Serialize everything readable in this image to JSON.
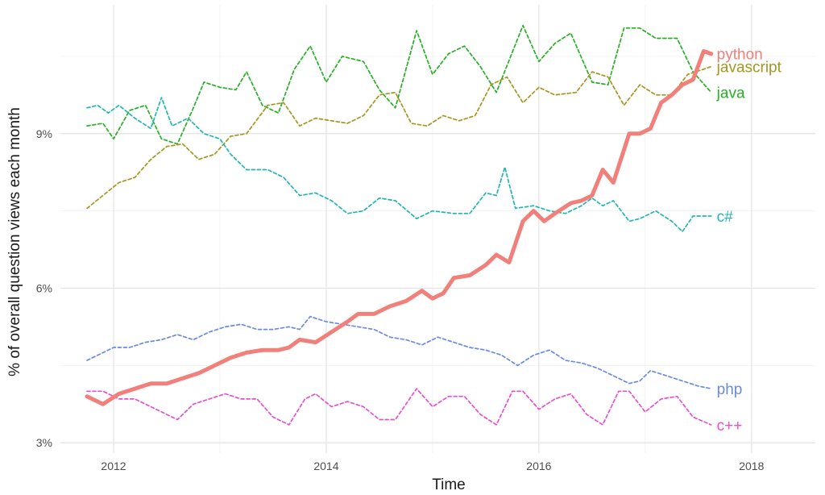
{
  "chart_data": {
    "type": "line",
    "title": "",
    "xlabel": "Time",
    "ylabel": "% of overall question views each month",
    "xlim": [
      2011.5,
      2018.6
    ],
    "ylim": [
      2.8,
      11.5
    ],
    "x_ticks": [
      2012,
      2014,
      2016,
      2018
    ],
    "x_tick_labels": [
      "2012",
      "2014",
      "2016",
      "2018"
    ],
    "y_ticks": [
      3,
      6,
      9
    ],
    "y_tick_labels": [
      "3%",
      "6%",
      "9%"
    ],
    "grid": true,
    "legend": "direct labels at line ends",
    "series": [
      {
        "name": "java",
        "color": "#26b024",
        "style": "dashed",
        "points": [
          [
            2011.75,
            9.15
          ],
          [
            2011.9,
            9.2
          ],
          [
            2012.0,
            8.9
          ],
          [
            2012.15,
            9.45
          ],
          [
            2012.3,
            9.55
          ],
          [
            2012.45,
            8.9
          ],
          [
            2012.6,
            8.8
          ],
          [
            2012.75,
            9.5
          ],
          [
            2012.85,
            10.0
          ],
          [
            2013.0,
            9.9
          ],
          [
            2013.15,
            9.85
          ],
          [
            2013.25,
            10.2
          ],
          [
            2013.4,
            9.55
          ],
          [
            2013.55,
            9.4
          ],
          [
            2013.7,
            10.25
          ],
          [
            2013.85,
            10.7
          ],
          [
            2014.0,
            10.0
          ],
          [
            2014.15,
            10.5
          ],
          [
            2014.35,
            10.4
          ],
          [
            2014.5,
            9.85
          ],
          [
            2014.65,
            9.5
          ],
          [
            2014.85,
            11.0
          ],
          [
            2015.0,
            10.15
          ],
          [
            2015.15,
            10.55
          ],
          [
            2015.3,
            10.7
          ],
          [
            2015.45,
            10.3
          ],
          [
            2015.6,
            9.8
          ],
          [
            2015.85,
            11.1
          ],
          [
            2016.0,
            10.4
          ],
          [
            2016.15,
            10.75
          ],
          [
            2016.3,
            10.95
          ],
          [
            2016.5,
            10.0
          ],
          [
            2016.65,
            9.95
          ],
          [
            2016.8,
            11.05
          ],
          [
            2016.95,
            11.05
          ],
          [
            2017.1,
            10.85
          ],
          [
            2017.3,
            10.85
          ],
          [
            2017.45,
            10.2
          ],
          [
            2017.62,
            9.8
          ]
        ]
      },
      {
        "name": "javascript",
        "color": "#a5961f",
        "style": "dashed",
        "points": [
          [
            2011.75,
            7.55
          ],
          [
            2011.9,
            7.8
          ],
          [
            2012.05,
            8.05
          ],
          [
            2012.2,
            8.15
          ],
          [
            2012.35,
            8.5
          ],
          [
            2012.5,
            8.75
          ],
          [
            2012.65,
            8.8
          ],
          [
            2012.8,
            8.5
          ],
          [
            2012.95,
            8.6
          ],
          [
            2013.1,
            8.95
          ],
          [
            2013.25,
            9.0
          ],
          [
            2013.45,
            9.55
          ],
          [
            2013.6,
            9.6
          ],
          [
            2013.75,
            9.15
          ],
          [
            2013.9,
            9.3
          ],
          [
            2014.05,
            9.25
          ],
          [
            2014.2,
            9.2
          ],
          [
            2014.35,
            9.35
          ],
          [
            2014.5,
            9.75
          ],
          [
            2014.65,
            9.8
          ],
          [
            2014.8,
            9.2
          ],
          [
            2014.95,
            9.15
          ],
          [
            2015.1,
            9.35
          ],
          [
            2015.25,
            9.25
          ],
          [
            2015.4,
            9.35
          ],
          [
            2015.55,
            9.95
          ],
          [
            2015.7,
            10.1
          ],
          [
            2015.85,
            9.6
          ],
          [
            2016.0,
            9.9
          ],
          [
            2016.15,
            9.75
          ],
          [
            2016.35,
            9.8
          ],
          [
            2016.5,
            10.2
          ],
          [
            2016.65,
            10.1
          ],
          [
            2016.8,
            9.55
          ],
          [
            2016.95,
            9.95
          ],
          [
            2017.1,
            9.75
          ],
          [
            2017.25,
            9.75
          ],
          [
            2017.4,
            10.15
          ],
          [
            2017.62,
            10.3
          ]
        ]
      },
      {
        "name": "c#",
        "color": "#23b5b5",
        "style": "dashed",
        "points": [
          [
            2011.75,
            9.5
          ],
          [
            2011.85,
            9.55
          ],
          [
            2011.95,
            9.4
          ],
          [
            2012.05,
            9.55
          ],
          [
            2012.2,
            9.3
          ],
          [
            2012.35,
            9.1
          ],
          [
            2012.45,
            9.7
          ],
          [
            2012.55,
            9.15
          ],
          [
            2012.7,
            9.3
          ],
          [
            2012.85,
            9.0
          ],
          [
            2013.0,
            8.9
          ],
          [
            2013.1,
            8.6
          ],
          [
            2013.25,
            8.3
          ],
          [
            2013.45,
            8.3
          ],
          [
            2013.6,
            8.15
          ],
          [
            2013.75,
            7.8
          ],
          [
            2013.9,
            7.85
          ],
          [
            2014.05,
            7.7
          ],
          [
            2014.2,
            7.45
          ],
          [
            2014.35,
            7.5
          ],
          [
            2014.5,
            7.75
          ],
          [
            2014.65,
            7.7
          ],
          [
            2014.85,
            7.35
          ],
          [
            2015.0,
            7.5
          ],
          [
            2015.2,
            7.45
          ],
          [
            2015.35,
            7.45
          ],
          [
            2015.5,
            7.85
          ],
          [
            2015.6,
            7.8
          ],
          [
            2015.68,
            8.35
          ],
          [
            2015.78,
            7.55
          ],
          [
            2015.95,
            7.6
          ],
          [
            2016.1,
            7.5
          ],
          [
            2016.25,
            7.45
          ],
          [
            2016.4,
            7.6
          ],
          [
            2016.5,
            7.75
          ],
          [
            2016.6,
            7.6
          ],
          [
            2016.7,
            7.7
          ],
          [
            2016.85,
            7.3
          ],
          [
            2016.95,
            7.35
          ],
          [
            2017.1,
            7.5
          ],
          [
            2017.25,
            7.3
          ],
          [
            2017.35,
            7.1
          ],
          [
            2017.45,
            7.4
          ],
          [
            2017.62,
            7.4
          ]
        ]
      },
      {
        "name": "php",
        "color": "#6b8be0",
        "style": "dashed",
        "points": [
          [
            2011.75,
            4.6
          ],
          [
            2011.85,
            4.7
          ],
          [
            2012.0,
            4.85
          ],
          [
            2012.15,
            4.85
          ],
          [
            2012.3,
            4.95
          ],
          [
            2012.45,
            5.0
          ],
          [
            2012.6,
            5.1
          ],
          [
            2012.75,
            5.0
          ],
          [
            2012.9,
            5.15
          ],
          [
            2013.05,
            5.25
          ],
          [
            2013.2,
            5.3
          ],
          [
            2013.35,
            5.2
          ],
          [
            2013.5,
            5.2
          ],
          [
            2013.65,
            5.25
          ],
          [
            2013.75,
            5.2
          ],
          [
            2013.85,
            5.45
          ],
          [
            2014.0,
            5.35
          ],
          [
            2014.15,
            5.3
          ],
          [
            2014.3,
            5.25
          ],
          [
            2014.45,
            5.2
          ],
          [
            2014.6,
            5.05
          ],
          [
            2014.75,
            5.0
          ],
          [
            2014.9,
            4.9
          ],
          [
            2015.05,
            5.05
          ],
          [
            2015.2,
            4.95
          ],
          [
            2015.35,
            4.85
          ],
          [
            2015.5,
            4.8
          ],
          [
            2015.65,
            4.7
          ],
          [
            2015.8,
            4.5
          ],
          [
            2015.95,
            4.7
          ],
          [
            2016.1,
            4.8
          ],
          [
            2016.25,
            4.6
          ],
          [
            2016.4,
            4.55
          ],
          [
            2016.55,
            4.45
          ],
          [
            2016.7,
            4.3
          ],
          [
            2016.85,
            4.15
          ],
          [
            2016.95,
            4.2
          ],
          [
            2017.05,
            4.4
          ],
          [
            2017.2,
            4.3
          ],
          [
            2017.35,
            4.2
          ],
          [
            2017.5,
            4.1
          ],
          [
            2017.62,
            4.05
          ]
        ]
      },
      {
        "name": "c++",
        "color": "#e84fd0",
        "style": "dashed",
        "points": [
          [
            2011.75,
            4.0
          ],
          [
            2011.9,
            4.0
          ],
          [
            2012.05,
            3.85
          ],
          [
            2012.2,
            3.85
          ],
          [
            2012.35,
            3.7
          ],
          [
            2012.5,
            3.55
          ],
          [
            2012.6,
            3.45
          ],
          [
            2012.75,
            3.75
          ],
          [
            2012.9,
            3.85
          ],
          [
            2013.05,
            3.95
          ],
          [
            2013.2,
            3.85
          ],
          [
            2013.35,
            3.85
          ],
          [
            2013.5,
            3.5
          ],
          [
            2013.65,
            3.35
          ],
          [
            2013.8,
            3.85
          ],
          [
            2013.9,
            3.95
          ],
          [
            2014.05,
            3.7
          ],
          [
            2014.2,
            3.8
          ],
          [
            2014.35,
            3.7
          ],
          [
            2014.5,
            3.45
          ],
          [
            2014.65,
            3.45
          ],
          [
            2014.85,
            4.05
          ],
          [
            2015.0,
            3.7
          ],
          [
            2015.15,
            3.9
          ],
          [
            2015.3,
            3.9
          ],
          [
            2015.45,
            3.55
          ],
          [
            2015.6,
            3.35
          ],
          [
            2015.75,
            4.0
          ],
          [
            2015.85,
            4.0
          ],
          [
            2016.0,
            3.65
          ],
          [
            2016.15,
            3.85
          ],
          [
            2016.3,
            3.95
          ],
          [
            2016.45,
            3.55
          ],
          [
            2016.6,
            3.35
          ],
          [
            2016.75,
            4.0
          ],
          [
            2016.85,
            4.0
          ],
          [
            2017.0,
            3.6
          ],
          [
            2017.15,
            3.85
          ],
          [
            2017.3,
            3.9
          ],
          [
            2017.45,
            3.5
          ],
          [
            2017.62,
            3.35
          ]
        ]
      },
      {
        "name": "python",
        "color": "#f1807a",
        "style": "solid",
        "points": [
          [
            2011.75,
            3.9
          ],
          [
            2011.9,
            3.75
          ],
          [
            2012.05,
            3.95
          ],
          [
            2012.2,
            4.05
          ],
          [
            2012.35,
            4.15
          ],
          [
            2012.5,
            4.15
          ],
          [
            2012.65,
            4.25
          ],
          [
            2012.8,
            4.35
          ],
          [
            2012.95,
            4.5
          ],
          [
            2013.1,
            4.65
          ],
          [
            2013.25,
            4.75
          ],
          [
            2013.4,
            4.8
          ],
          [
            2013.55,
            4.8
          ],
          [
            2013.65,
            4.85
          ],
          [
            2013.75,
            5.0
          ],
          [
            2013.9,
            4.95
          ],
          [
            2014.05,
            5.15
          ],
          [
            2014.2,
            5.35
          ],
          [
            2014.3,
            5.5
          ],
          [
            2014.45,
            5.5
          ],
          [
            2014.6,
            5.65
          ],
          [
            2014.75,
            5.75
          ],
          [
            2014.9,
            5.95
          ],
          [
            2015.0,
            5.8
          ],
          [
            2015.1,
            5.9
          ],
          [
            2015.2,
            6.2
          ],
          [
            2015.35,
            6.25
          ],
          [
            2015.5,
            6.45
          ],
          [
            2015.6,
            6.65
          ],
          [
            2015.72,
            6.5
          ],
          [
            2015.85,
            7.3
          ],
          [
            2015.95,
            7.5
          ],
          [
            2016.05,
            7.3
          ],
          [
            2016.15,
            7.45
          ],
          [
            2016.3,
            7.65
          ],
          [
            2016.4,
            7.7
          ],
          [
            2016.5,
            7.8
          ],
          [
            2016.6,
            8.3
          ],
          [
            2016.7,
            8.05
          ],
          [
            2016.85,
            9.0
          ],
          [
            2016.95,
            9.0
          ],
          [
            2017.05,
            9.1
          ],
          [
            2017.15,
            9.6
          ],
          [
            2017.25,
            9.75
          ],
          [
            2017.35,
            9.95
          ],
          [
            2017.45,
            10.05
          ],
          [
            2017.55,
            10.6
          ],
          [
            2017.62,
            10.55
          ]
        ]
      }
    ]
  }
}
